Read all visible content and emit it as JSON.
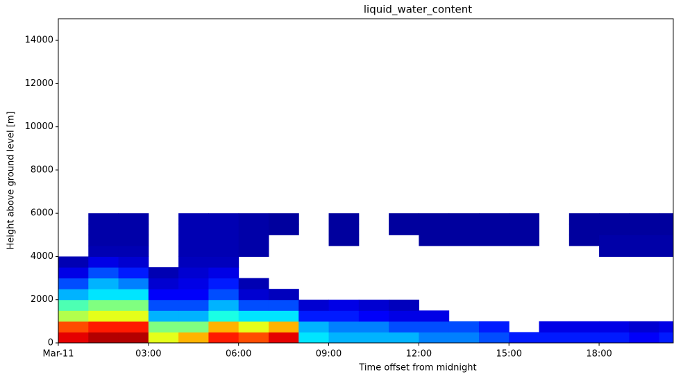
{
  "chart_data": {
    "type": "heatmap",
    "title": "liquid_water_content",
    "xlabel": "Time offset from midnight",
    "ylabel": "Height above ground level [m]",
    "x": [
      0,
      1,
      2,
      3,
      4,
      5,
      6,
      7,
      8,
      9,
      10,
      11,
      12,
      13,
      14,
      15,
      16,
      17,
      18,
      19,
      20
    ],
    "y": [
      0,
      500,
      1000,
      1500,
      2000,
      2500,
      3000,
      3500,
      4000,
      4500,
      5000,
      5500
    ],
    "z": [
      [
        0.9,
        0.95,
        0.95,
        0.6,
        0.7,
        0.85,
        0.8,
        0.9,
        0.35,
        0.3,
        0.3,
        0.3,
        0.25,
        0.25,
        0.2,
        0.15,
        0.15,
        0.15,
        0.15,
        0.12,
        0.15
      ],
      [
        0.8,
        0.85,
        0.85,
        0.5,
        0.5,
        0.7,
        0.6,
        0.7,
        0.3,
        0.25,
        0.25,
        0.2,
        0.2,
        0.2,
        0.15,
        null,
        0.1,
        0.1,
        0.1,
        0.08,
        0.1
      ],
      [
        0.55,
        0.6,
        0.6,
        0.3,
        0.3,
        0.4,
        0.35,
        0.35,
        0.15,
        0.15,
        0.12,
        0.1,
        0.1,
        null,
        null,
        null,
        null,
        null,
        null,
        null,
        null
      ],
      [
        0.45,
        0.5,
        0.5,
        0.2,
        0.2,
        0.3,
        0.2,
        0.2,
        0.08,
        0.1,
        0.08,
        0.06,
        null,
        null,
        null,
        null,
        null,
        null,
        null,
        null,
        null
      ],
      [
        0.3,
        0.35,
        0.35,
        0.12,
        0.12,
        0.2,
        0.08,
        0.06,
        null,
        null,
        null,
        null,
        null,
        null,
        null,
        null,
        null,
        null,
        null,
        null,
        null
      ],
      [
        0.2,
        0.3,
        0.25,
        0.08,
        0.1,
        0.15,
        0.05,
        null,
        null,
        null,
        null,
        null,
        null,
        null,
        null,
        null,
        null,
        null,
        null,
        null,
        null
      ],
      [
        0.1,
        0.2,
        0.15,
        0.05,
        0.08,
        0.1,
        null,
        null,
        null,
        null,
        null,
        null,
        null,
        null,
        null,
        null,
        null,
        null,
        null,
        null,
        null
      ],
      [
        0.05,
        0.1,
        0.08,
        null,
        0.06,
        0.06,
        null,
        null,
        null,
        null,
        null,
        null,
        null,
        null,
        null,
        null,
        null,
        null,
        null,
        null,
        null
      ],
      [
        null,
        0.05,
        0.05,
        null,
        0.05,
        0.05,
        0.04,
        null,
        null,
        null,
        null,
        null,
        null,
        null,
        null,
        null,
        null,
        null,
        0.04,
        0.04,
        0.04
      ],
      [
        null,
        0.04,
        0.04,
        null,
        0.05,
        0.05,
        0.04,
        null,
        null,
        0.03,
        null,
        null,
        0.03,
        0.03,
        0.03,
        0.03,
        null,
        0.03,
        0.04,
        0.04,
        0.04
      ],
      [
        null,
        0.04,
        0.04,
        null,
        0.05,
        0.05,
        0.04,
        0.03,
        null,
        0.03,
        null,
        0.03,
        0.03,
        0.03,
        0.03,
        0.03,
        null,
        0.03,
        0.03,
        0.03,
        0.03
      ],
      [
        null,
        0.04,
        0.04,
        null,
        0.05,
        0.05,
        0.04,
        0.03,
        null,
        0.03,
        null,
        0.03,
        0.03,
        0.03,
        0.03,
        0.03,
        null,
        0.03,
        0.03,
        0.03,
        0.03
      ]
    ],
    "colormap": "jet",
    "zlim": [
      0,
      1
    ],
    "xlim": [
      0,
      20.47
    ],
    "ylim": [
      0,
      15000
    ],
    "xticks": [
      {
        "value": 0,
        "label": "Mar-11"
      },
      {
        "value": 3,
        "label": "03:00"
      },
      {
        "value": 6,
        "label": "06:00"
      },
      {
        "value": 9,
        "label": "09:00"
      },
      {
        "value": 12,
        "label": "12:00"
      },
      {
        "value": 15,
        "label": "15:00"
      },
      {
        "value": 18,
        "label": "18:00"
      }
    ],
    "yticks": [
      0,
      2000,
      4000,
      6000,
      8000,
      10000,
      12000,
      14000
    ]
  }
}
